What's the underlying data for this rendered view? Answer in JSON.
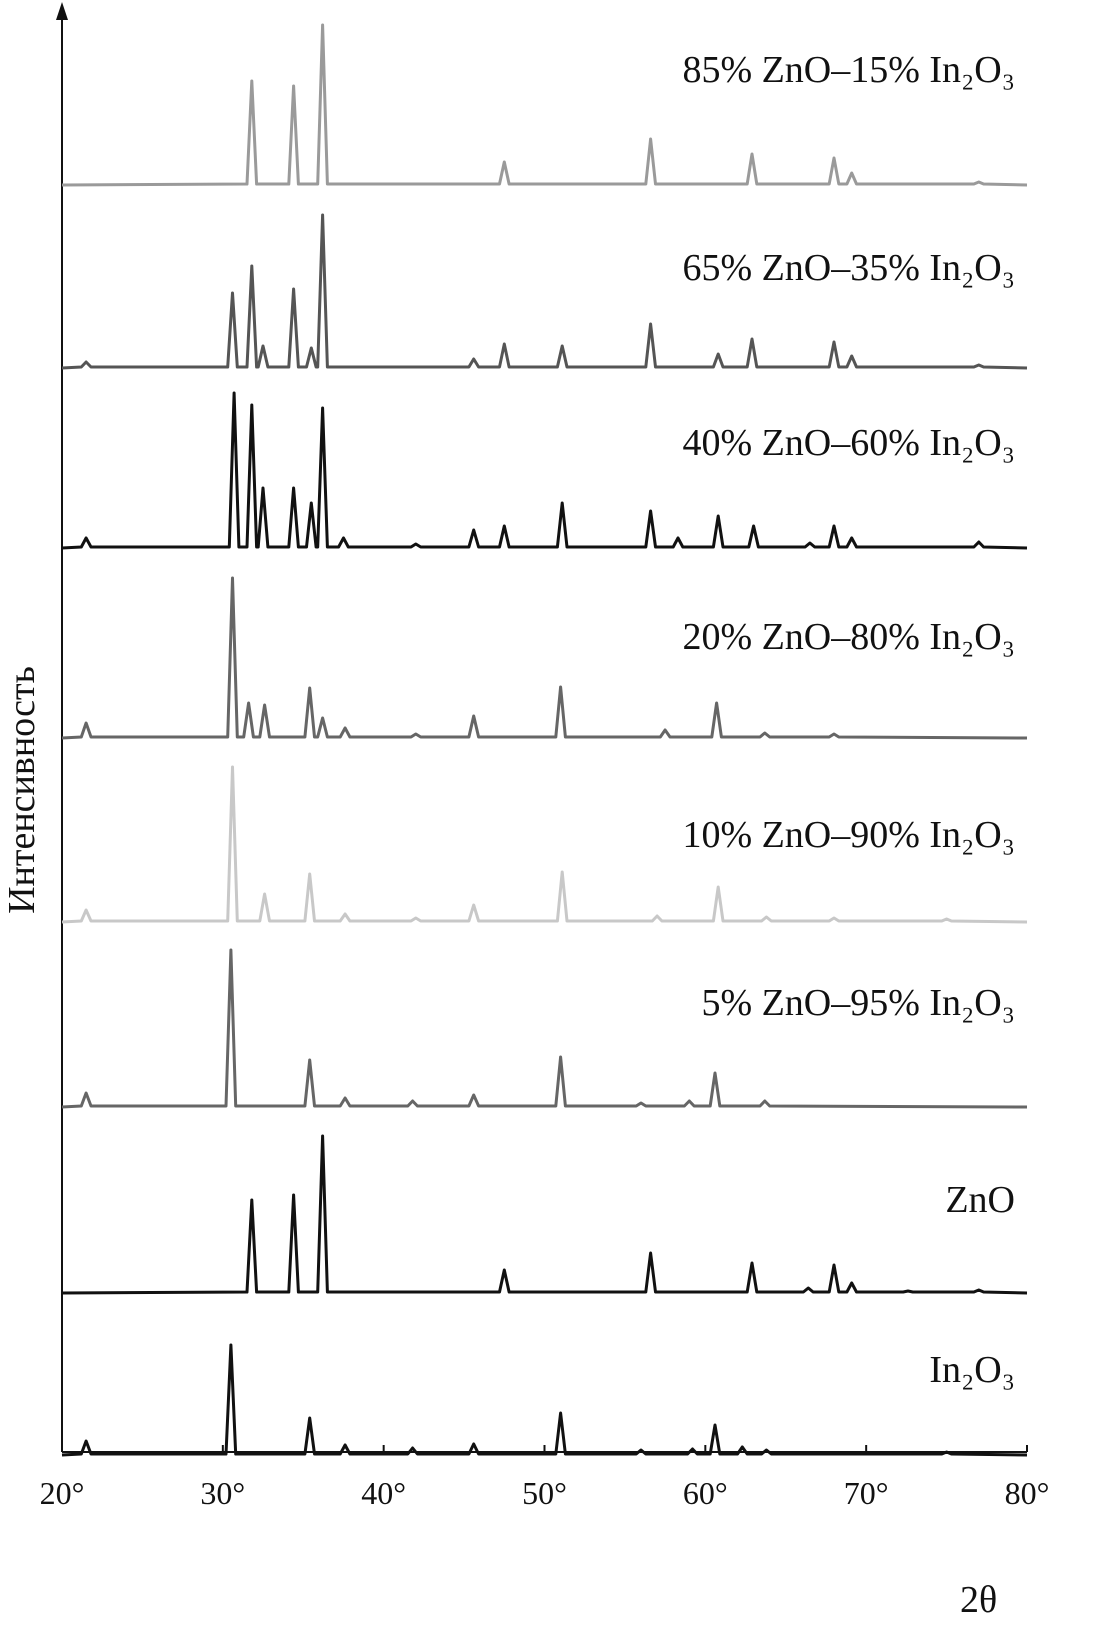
{
  "chart_data": {
    "type": "line",
    "x_label": "2θ",
    "y_label": "Интенсивность",
    "xlim": [
      20,
      80
    ],
    "xticks": [
      {
        "value": 20,
        "label": "20°"
      },
      {
        "value": 30,
        "label": "30°"
      },
      {
        "value": 40,
        "label": "40°"
      },
      {
        "value": 50,
        "label": "50°"
      },
      {
        "value": 60,
        "label": "60°"
      },
      {
        "value": 70,
        "label": "70°"
      },
      {
        "value": 80,
        "label": "80°"
      }
    ],
    "series": [
      {
        "name": "85% ZnO–15% In₂O₃",
        "color": "#9a9a9a",
        "x": [
          20,
          31.5,
          31.8,
          32.1,
          34.1,
          34.4,
          34.7,
          35.9,
          36.2,
          36.5,
          47.2,
          47.5,
          47.8,
          56.3,
          56.6,
          56.9,
          62.6,
          62.9,
          63.2,
          67.7,
          68.0,
          68.3,
          68.8,
          69.1,
          69.4,
          76.7,
          77.0,
          77.3,
          80
        ],
        "values": [
          0,
          1,
          104,
          1,
          1,
          99,
          1,
          1,
          160,
          1,
          1,
          23,
          1,
          1,
          46,
          1,
          1,
          31,
          1,
          1,
          27,
          1,
          1,
          12,
          1,
          1,
          3,
          1,
          0
        ]
      },
      {
        "name": "65% ZnO–35% In₂O₃",
        "color": "#555555",
        "x": [
          20,
          21.2,
          21.5,
          21.8,
          30.3,
          30.6,
          30.9,
          31.5,
          31.8,
          32.1,
          32.2,
          32.5,
          32.8,
          34.1,
          34.4,
          34.7,
          35.2,
          35.5,
          35.8,
          35.9,
          36.2,
          36.5,
          45.3,
          45.6,
          45.9,
          47.2,
          47.5,
          47.8,
          50.8,
          51.1,
          51.4,
          56.3,
          56.6,
          56.9,
          60.5,
          60.8,
          61.1,
          62.6,
          62.9,
          63.2,
          67.7,
          68.0,
          68.3,
          68.8,
          69.1,
          69.4,
          76.7,
          77.0,
          77.3,
          80
        ],
        "values": [
          0,
          1,
          6,
          1,
          1,
          75,
          1,
          1,
          102,
          1,
          1,
          22,
          1,
          1,
          79,
          1,
          1,
          20,
          1,
          1,
          153,
          1,
          1,
          9,
          1,
          1,
          24,
          1,
          1,
          22,
          1,
          1,
          44,
          1,
          1,
          14,
          1,
          1,
          29,
          1,
          1,
          26,
          1,
          1,
          12,
          1,
          1,
          3,
          1,
          0
        ]
      },
      {
        "name": "40% ZnO–60% In₂O₃",
        "color": "#111111",
        "x": [
          20,
          21.2,
          21.5,
          21.8,
          30.4,
          30.7,
          31.0,
          31.5,
          31.8,
          32.1,
          32.2,
          32.5,
          32.8,
          34.1,
          34.4,
          34.7,
          35.2,
          35.5,
          35.8,
          35.9,
          36.2,
          36.5,
          37.2,
          37.5,
          37.8,
          41.7,
          42.0,
          42.3,
          45.3,
          45.6,
          45.9,
          47.2,
          47.5,
          47.8,
          50.8,
          51.1,
          51.4,
          56.3,
          56.6,
          56.9,
          58.0,
          58.3,
          58.6,
          60.5,
          60.8,
          61.1,
          62.7,
          63.0,
          63.3,
          66.2,
          66.5,
          66.8,
          67.7,
          68.0,
          68.3,
          68.8,
          69.1,
          69.4,
          76.7,
          77.0,
          77.3,
          80
        ],
        "values": [
          0,
          1,
          10,
          1,
          1,
          155,
          1,
          1,
          143,
          1,
          1,
          60,
          1,
          1,
          60,
          1,
          1,
          45,
          1,
          1,
          140,
          1,
          1,
          10,
          1,
          1,
          4,
          1,
          1,
          18,
          1,
          1,
          22,
          1,
          1,
          45,
          1,
          1,
          37,
          1,
          1,
          10,
          1,
          1,
          32,
          1,
          1,
          22,
          1,
          1,
          5,
          1,
          1,
          22,
          1,
          1,
          10,
          1,
          1,
          6,
          1,
          0
        ]
      },
      {
        "name": "20% ZnO–80% In₂O₃",
        "color": "#666666",
        "x": [
          20,
          21.2,
          21.5,
          21.8,
          30.3,
          30.6,
          30.9,
          31.3,
          31.6,
          31.9,
          32.3,
          32.6,
          32.9,
          35.1,
          35.4,
          35.7,
          35.9,
          36.2,
          36.5,
          37.3,
          37.6,
          37.9,
          41.7,
          42.0,
          42.3,
          45.3,
          45.6,
          45.9,
          50.7,
          51.0,
          51.3,
          57.2,
          57.5,
          57.8,
          60.4,
          60.7,
          61.0,
          63.4,
          63.7,
          64.0,
          67.7,
          68.0,
          68.3,
          80
        ],
        "values": [
          0,
          1,
          15,
          1,
          1,
          160,
          1,
          1,
          35,
          1,
          1,
          33,
          1,
          1,
          50,
          1,
          1,
          20,
          1,
          1,
          10,
          1,
          1,
          4,
          1,
          1,
          22,
          1,
          1,
          51,
          1,
          1,
          8,
          1,
          1,
          35,
          1,
          1,
          5,
          1,
          1,
          4,
          1,
          0
        ]
      },
      {
        "name": "10% ZnO–90% In₂O₃",
        "color": "#c8c8c8",
        "x": [
          20,
          21.2,
          21.5,
          21.8,
          30.3,
          30.6,
          30.9,
          32.3,
          32.6,
          32.9,
          35.1,
          35.4,
          35.7,
          37.3,
          37.6,
          37.9,
          41.7,
          42.0,
          42.3,
          45.3,
          45.6,
          45.9,
          50.8,
          51.1,
          51.4,
          56.7,
          57.0,
          57.3,
          60.5,
          60.8,
          61.1,
          63.5,
          63.8,
          64.1,
          67.7,
          68.0,
          68.3,
          74.7,
          75.0,
          75.3,
          80
        ],
        "values": [
          0,
          1,
          12,
          1,
          1,
          155,
          1,
          1,
          28,
          1,
          1,
          48,
          1,
          1,
          8,
          1,
          1,
          4,
          1,
          1,
          17,
          1,
          1,
          50,
          1,
          1,
          6,
          1,
          1,
          35,
          1,
          1,
          5,
          1,
          1,
          4,
          1,
          1,
          3,
          1,
          0
        ]
      },
      {
        "name": "5% ZnO–95% In₂O₃",
        "color": "#666666",
        "x": [
          20,
          21.2,
          21.5,
          21.8,
          30.2,
          30.5,
          30.8,
          35.1,
          35.4,
          35.7,
          37.3,
          37.6,
          37.9,
          41.5,
          41.8,
          42.1,
          45.3,
          45.6,
          45.9,
          50.7,
          51.0,
          51.3,
          55.7,
          56.0,
          56.3,
          58.7,
          59.0,
          59.3,
          60.3,
          60.6,
          60.9,
          63.4,
          63.7,
          64.0,
          80
        ],
        "values": [
          0,
          1,
          14,
          1,
          1,
          157,
          1,
          1,
          47,
          1,
          1,
          9,
          1,
          1,
          6,
          1,
          1,
          12,
          1,
          1,
          50,
          1,
          1,
          4,
          1,
          1,
          6,
          1,
          1,
          34,
          1,
          1,
          6,
          1,
          0
        ]
      },
      {
        "name": "ZnO",
        "color": "#111111",
        "x": [
          20,
          31.5,
          31.8,
          32.1,
          34.1,
          34.4,
          34.7,
          35.9,
          36.2,
          36.5,
          47.2,
          47.5,
          47.8,
          56.3,
          56.6,
          56.9,
          62.6,
          62.9,
          63.2,
          66.1,
          66.4,
          66.7,
          67.7,
          68.0,
          68.3,
          68.8,
          69.1,
          69.4,
          72.3,
          72.6,
          72.9,
          76.7,
          77.0,
          77.3,
          80
        ],
        "values": [
          0,
          1,
          93,
          1,
          1,
          98,
          1,
          1,
          157,
          1,
          1,
          23,
          1,
          1,
          40,
          1,
          1,
          30,
          1,
          1,
          5,
          1,
          1,
          28,
          1,
          1,
          10,
          1,
          1,
          2,
          1,
          1,
          3,
          1,
          0
        ]
      },
      {
        "name": "In₂O₃",
        "color": "#111111",
        "x": [
          20,
          21.2,
          21.5,
          21.8,
          30.2,
          30.5,
          30.8,
          35.1,
          35.4,
          35.7,
          37.3,
          37.6,
          37.9,
          41.5,
          41.8,
          42.1,
          45.3,
          45.6,
          45.9,
          50.7,
          51.0,
          51.3,
          55.7,
          56.0,
          56.3,
          58.9,
          59.2,
          59.5,
          60.3,
          60.6,
          60.9,
          62.0,
          62.3,
          62.6,
          63.5,
          63.8,
          64.1,
          74.7,
          75.0,
          75.3,
          80
        ],
        "values": [
          0,
          1,
          14,
          1,
          1,
          110,
          1,
          1,
          37,
          1,
          1,
          10,
          1,
          1,
          7,
          1,
          1,
          11,
          1,
          1,
          42,
          1,
          1,
          5,
          1,
          1,
          6,
          1,
          1,
          30,
          1,
          1,
          8,
          1,
          1,
          5,
          1,
          1,
          3,
          1,
          0
        ]
      }
    ]
  }
}
